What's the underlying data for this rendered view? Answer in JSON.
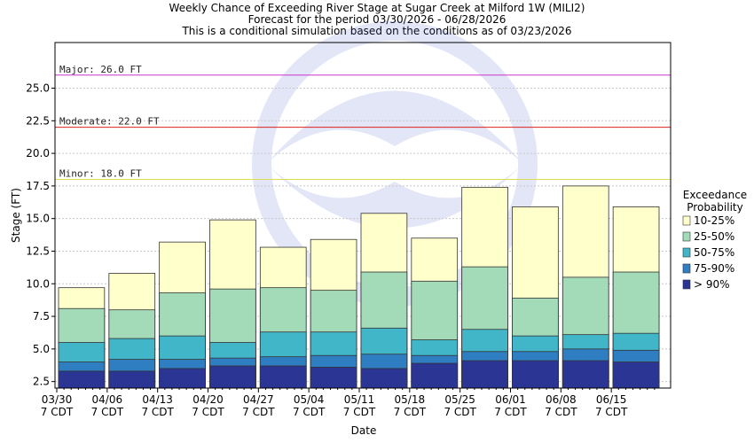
{
  "chart_data": {
    "type": "bar",
    "title_lines": [
      "Weekly Chance of Exceeding River Stage at Sugar Creek at Milford 1W (MILI2)",
      "Forecast for the period 03/30/2026 - 06/28/2026",
      "This is a conditional simulation based on the conditions as of 03/23/2026"
    ],
    "xlabel": "Date",
    "ylabel": "Stage (FT)",
    "ylim": [
      2.0,
      28.5
    ],
    "yticks": [
      "2.5",
      "5.0",
      "7.5",
      "10.0",
      "12.5",
      "15.0",
      "17.5",
      "20.0",
      "22.5",
      "25.0"
    ],
    "grid": true,
    "categories": [
      "03/30",
      "04/06",
      "04/13",
      "04/20",
      "04/27",
      "05/04",
      "05/11",
      "05/18",
      "05/25",
      "06/01",
      "06/08",
      "06/15"
    ],
    "category_sub": "7 CDT",
    "thresholds": [
      {
        "label": "Major: 26.0 FT",
        "value": 26.0,
        "color": "#cc33cc"
      },
      {
        "label": "Moderate: 22.0 FT",
        "value": 22.0,
        "color": "#dd2222"
      },
      {
        "label": "Minor: 18.0 FT",
        "value": 18.0,
        "color": "#dddd55"
      }
    ],
    "legend_title": [
      "Exceedance",
      "Probability"
    ],
    "legend_position": "right",
    "series": [
      {
        "name": "> 90%",
        "color": "#2b3594",
        "values": [
          3.3,
          3.3,
          3.5,
          3.7,
          3.7,
          3.6,
          3.5,
          3.9,
          4.1,
          4.1,
          4.1,
          4.0
        ]
      },
      {
        "name": "75-90%",
        "color": "#2f7ec2",
        "values": [
          4.0,
          4.2,
          4.2,
          4.3,
          4.4,
          4.5,
          4.6,
          4.5,
          4.8,
          4.8,
          5.0,
          4.9
        ]
      },
      {
        "name": "50-75%",
        "color": "#42b6c9",
        "values": [
          5.5,
          5.8,
          6.0,
          5.5,
          6.3,
          6.3,
          6.6,
          5.7,
          6.5,
          6.0,
          6.1,
          6.2
        ]
      },
      {
        "name": "25-50%",
        "color": "#a3dab8",
        "values": [
          8.1,
          8.0,
          9.3,
          9.6,
          9.7,
          9.5,
          10.9,
          10.2,
          11.3,
          8.9,
          10.5,
          10.9
        ]
      },
      {
        "name": "10-25%",
        "color": "#ffffcc",
        "values": [
          9.7,
          10.8,
          13.2,
          14.9,
          12.8,
          13.4,
          15.4,
          13.5,
          17.4,
          15.9,
          17.5,
          15.9
        ]
      }
    ]
  }
}
